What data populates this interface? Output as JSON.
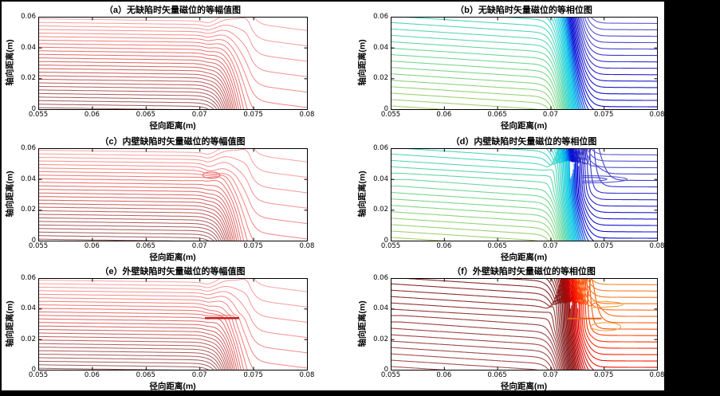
{
  "figure": {
    "background": "#ffffff",
    "matting_color": "#000000",
    "description": "Six MATLAB-style contour panels (2 columns x 3 rows) of vector magnetic potential around a pipe wall: left column iso-amplitude (red), right column iso-phase (jet-colored), for no defect, inner-wall defect and outer-wall defect."
  },
  "axes": {
    "x_label": "径向距离(m)",
    "y_label": "轴向距离(m)",
    "x_ticks": [
      "0.055",
      "0.06",
      "0.065",
      "0.07",
      "0.075",
      "0.08"
    ],
    "x_tick_values": [
      0.055,
      0.06,
      0.065,
      0.07,
      0.075,
      0.08
    ],
    "y_ticks": [
      "0",
      "0.02",
      "0.04",
      "0.06"
    ],
    "y_tick_values": [
      0,
      0.02,
      0.04,
      0.06
    ],
    "xlim": [
      0.055,
      0.08
    ],
    "ylim": [
      0,
      0.06
    ],
    "frame_color": "#000000"
  },
  "chart_data": [
    {
      "panel": "a",
      "type": "contour",
      "title": "（a）无缺陷时矢量磁位的等幅值图",
      "xlabel": "径向距离(m)",
      "ylabel": "轴向距离(m)",
      "xlim": [
        0.055,
        0.08
      ],
      "ylim": [
        0,
        0.06
      ],
      "xticks": [
        0.055,
        0.06,
        0.065,
        0.07,
        0.075,
        0.08
      ],
      "yticks": [
        0,
        0.02,
        0.04,
        0.06
      ],
      "n_levels": 26,
      "grid": false,
      "legend": "none",
      "features": {
        "left_lines": "≈26 near-horizontal red lines, spacing ≈0.0023 m",
        "wall_band_x": [
          0.07,
          0.0745
        ],
        "right_lines": "≈6 lines sloping down-right, spacing ≈0.01 m",
        "defect": null
      },
      "cmap": [
        [
          0,
          "#9A5858"
        ],
        [
          0.28,
          "#B55A5A"
        ],
        [
          0.5,
          "#D56060"
        ],
        [
          0.68,
          "#EE6E6E"
        ],
        [
          0.85,
          "#F68A8A"
        ],
        [
          1,
          "#F8A4A4"
        ]
      ],
      "model": {
        "type": "amp",
        "n": 26,
        "k_off": 0.4,
        "c_in": 433,
        "c_out": 100,
        "cx0": 0.0705,
        "cx1": 0.0747,
        "r_in": 40,
        "R": 6700,
        "xw": 0.0728,
        "ww": 0.0016,
        "r_out": 90,
        "out0": 0.0735,
        "out1": 0.0748,
        "lw": 1
      },
      "extras": {}
    },
    {
      "panel": "b",
      "type": "contour",
      "title": "（b）无缺陷时矢量磁位的等相位图",
      "xlabel": "径向距离(m)",
      "ylabel": "轴向距离(m)",
      "xlim": [
        0.055,
        0.08
      ],
      "ylim": [
        0,
        0.06
      ],
      "xticks": [
        0.055,
        0.06,
        0.065,
        0.07,
        0.075,
        0.08
      ],
      "yticks": [
        0,
        0.02,
        0.04,
        0.06
      ],
      "n_levels": 60,
      "grid": false,
      "legend": "none",
      "features": {
        "left_lines": "green lines slope ≈ -0.45, spacing ≈0.0046 m",
        "wall_band_x": [
          0.0695,
          0.0745
        ],
        "band_colors": "cyan block then deep blue block then blue hatch",
        "right_lines": "≈14 horizontal periwinkle-blue lines",
        "defect": null
      },
      "cmap": [
        [
          0,
          "#A9CF6B"
        ],
        [
          0.1,
          "#7FD687"
        ],
        [
          0.2,
          "#5BD8AE"
        ],
        [
          0.3,
          "#2ED6D6"
        ],
        [
          0.38,
          "#0EC9E9"
        ],
        [
          0.46,
          "#0072E8"
        ],
        [
          0.52,
          "#0008D8"
        ],
        [
          0.6,
          "#1818CE"
        ],
        [
          0.7,
          "#4444CE"
        ],
        [
          0.82,
          "#7070DA"
        ],
        [
          1,
          "#8A8ADF"
        ]
      ],
      "model": {
        "type": "phase",
        "n": 60,
        "k_off": 0.5,
        "c_in": 240,
        "c_out": 240,
        "cx0": 0.069,
        "cx1": 0.0755,
        "r_in": 108,
        "R": 11280,
        "xw": 0.0718,
        "ww": 0.0015,
        "r_out": 8,
        "out0": 0.0738,
        "out1": 0.0752,
        "lw": 1.1
      },
      "extras": {}
    },
    {
      "panel": "c",
      "type": "contour",
      "title": "（c）内壁缺陷时矢量磁位的等幅值图",
      "xlabel": "径向距离(m)",
      "ylabel": "轴向距离(m)",
      "xlim": [
        0.055,
        0.08
      ],
      "ylim": [
        0,
        0.06
      ],
      "xticks": [
        0.055,
        0.06,
        0.065,
        0.07,
        0.075,
        0.08
      ],
      "yticks": [
        0,
        0.02,
        0.04,
        0.06
      ],
      "n_levels": 26,
      "grid": false,
      "legend": "none",
      "features": {
        "same_as": "a",
        "defect": {
          "wall_side": "inner",
          "x": 0.0716,
          "y": 0.0425,
          "effect": "local wiggle / pinch of contours with small closed loop"
        }
      },
      "cmap": [
        [
          0,
          "#9A5858"
        ],
        [
          0.28,
          "#B55A5A"
        ],
        [
          0.5,
          "#D56060"
        ],
        [
          0.68,
          "#EE6E6E"
        ],
        [
          0.85,
          "#F68A8A"
        ],
        [
          1,
          "#F8A4A4"
        ]
      ],
      "model": {
        "type": "amp",
        "n": 26,
        "k_off": 0.4,
        "c_in": 433,
        "c_out": 100,
        "cx0": 0.0705,
        "cx1": 0.0747,
        "r_in": 40,
        "R": 6700,
        "xw": 0.0728,
        "ww": 0.0016,
        "r_out": 90,
        "out0": 0.0735,
        "out1": 0.0748,
        "lw": 1,
        "dip": {
          "a": 0.0045,
          "x": 0.0716,
          "wx": 0.0013,
          "y": 0.0425,
          "w": 0.0055
        }
      },
      "extras": {
        "loops": [
          {
            "cx": 0.0711,
            "cy": 0.0425,
            "rx": 0.0008,
            "ry": 0.002,
            "color": "#EE6A6A"
          }
        ]
      }
    },
    {
      "panel": "d",
      "type": "contour",
      "title": "（d）内壁缺陷时矢量磁位的等相位图",
      "xlabel": "径向距离(m)",
      "ylabel": "轴向距离(m)",
      "xlim": [
        0.055,
        0.08
      ],
      "ylim": [
        0,
        0.06
      ],
      "xticks": [
        0.055,
        0.06,
        0.065,
        0.07,
        0.075,
        0.08
      ],
      "yticks": [
        0,
        0.02,
        0.04,
        0.06
      ],
      "n_levels": 60,
      "grid": false,
      "legend": "none",
      "features": {
        "same_as": "b",
        "defect": {
          "wall_side": "inner",
          "y_range": [
            0.033,
            0.046
          ],
          "effect": "phase band jogs right ≈0.0017 m; blue tongue loops on right near y=0.040"
        }
      },
      "cmap": [
        [
          0,
          "#A9CF6B"
        ],
        [
          0.1,
          "#7FD687"
        ],
        [
          0.2,
          "#5BD8AE"
        ],
        [
          0.3,
          "#2ED6D6"
        ],
        [
          0.38,
          "#0EC9E9"
        ],
        [
          0.46,
          "#0072E8"
        ],
        [
          0.52,
          "#0008D8"
        ],
        [
          0.6,
          "#1818CE"
        ],
        [
          0.7,
          "#4444CE"
        ],
        [
          0.82,
          "#7070DA"
        ],
        [
          1,
          "#8A8ADF"
        ]
      ],
      "model": {
        "type": "phase",
        "n": 60,
        "k_off": 0.5,
        "c_in": 240,
        "c_out": 240,
        "cx0": 0.069,
        "cx1": 0.0755,
        "r_in": 108,
        "R": 11280,
        "xw": 0.0718,
        "ww": 0.0015,
        "r_out": 8,
        "out0": 0.0738,
        "out1": 0.0752,
        "lw": 1.1,
        "jog": {
          "a": 0.0017,
          "y": 0.0395,
          "w": 0.005
        }
      },
      "extras": {
        "tongues": [
          {
            "x0": 0.073,
            "ax": 0.0772,
            "yc": 0.0398,
            "h": 0.0023,
            "color": "#5050D2"
          },
          {
            "x0": 0.073,
            "ax": 0.0753,
            "yc": 0.0398,
            "h": 0.0012,
            "color": "#5050D2"
          }
        ]
      }
    },
    {
      "panel": "e",
      "type": "contour",
      "title": "（e）外壁缺陷时矢量磁位的等幅值图",
      "xlabel": "径向距离(m)",
      "ylabel": "轴向距离(m)",
      "xlim": [
        0.055,
        0.08
      ],
      "ylim": [
        0,
        0.06
      ],
      "xticks": [
        0.055,
        0.06,
        0.065,
        0.07,
        0.075,
        0.08
      ],
      "yticks": [
        0,
        0.02,
        0.04,
        0.06
      ],
      "n_levels": 26,
      "grid": false,
      "legend": "none",
      "features": {
        "same_as": "a",
        "defect": {
          "wall_side": "outer",
          "x": 0.0726,
          "y": 0.0355,
          "effect": "contours pinch at y≈0.034 with dark horizontal mark; wiggles above"
        }
      },
      "cmap": [
        [
          0,
          "#9A5858"
        ],
        [
          0.28,
          "#B55A5A"
        ],
        [
          0.5,
          "#D56060"
        ],
        [
          0.68,
          "#EE6E6E"
        ],
        [
          0.85,
          "#F68A8A"
        ],
        [
          1,
          "#F8A4A4"
        ]
      ],
      "model": {
        "type": "amp",
        "n": 26,
        "k_off": 0.4,
        "c_in": 433,
        "c_out": 100,
        "cx0": 0.0705,
        "cx1": 0.0747,
        "r_in": 40,
        "R": 6700,
        "xw": 0.0728,
        "ww": 0.0016,
        "r_out": 90,
        "out0": 0.0735,
        "out1": 0.0748,
        "lw": 1,
        "dip": {
          "a": 0.0058,
          "x": 0.0726,
          "wx": 0.0015,
          "y": 0.0355,
          "w": 0.0055
        }
      },
      "extras": {
        "marks": [
          {
            "x1": 0.0705,
            "y1": 0.0338,
            "x2": 0.0737,
            "y2": 0.0338,
            "color": "#C22222",
            "w": 2.5
          }
        ]
      }
    },
    {
      "panel": "f",
      "type": "contour",
      "title": "（f）外壁缺陷时矢量磁位的等相位图",
      "xlabel": "径向距离(m)",
      "ylabel": "轴向距离(m)",
      "xlim": [
        0.055,
        0.08
      ],
      "ylim": [
        0,
        0.06
      ],
      "xticks": [
        0.055,
        0.06,
        0.065,
        0.07,
        0.075,
        0.08
      ],
      "yticks": [
        0,
        0.02,
        0.04,
        0.06
      ],
      "n_levels": 60,
      "grid": false,
      "legend": "none",
      "features": {
        "left_lines": "maroon-brown lines slope ≈ -0.45",
        "wall_band_x": [
          0.07,
          0.0745
        ],
        "band_colors": "dark maroon → solid bright red → orange hatch",
        "right_lines": "orange horizontal lines, closed loop near (0.0752, 0.028)",
        "defect": {
          "wall_side": "outer",
          "y": 0.0335,
          "effect": "band jog and dark-orange pinch mark at y≈0.0335"
        }
      },
      "cmap": [
        [
          0,
          "#A85454"
        ],
        [
          0.14,
          "#9A3C3C"
        ],
        [
          0.28,
          "#842020"
        ],
        [
          0.4,
          "#9E0A0A"
        ],
        [
          0.5,
          "#D80000"
        ],
        [
          0.58,
          "#FF1E00"
        ],
        [
          0.68,
          "#FF6A14"
        ],
        [
          0.8,
          "#F28E34"
        ],
        [
          1,
          "#EFA84E"
        ]
      ],
      "model": {
        "type": "phase",
        "n": 60,
        "k_off": 0.5,
        "c_in": 240,
        "c_out": 240,
        "cx0": 0.069,
        "cx1": 0.0755,
        "r_in": 108,
        "R": 11280,
        "xw": 0.0718,
        "ww": 0.0015,
        "r_out": 8,
        "out0": 0.0738,
        "out1": 0.0752,
        "lw": 1.1,
        "jog": {
          "a": 0.0013,
          "y": 0.0335,
          "w": 0.0045
        }
      },
      "extras": {
        "loops": [
          {
            "cx": 0.0752,
            "cy": 0.0282,
            "rx": 0.0014,
            "ry": 0.0026,
            "color": "#EFA040"
          }
        ],
        "tongues": [
          {
            "x0": 0.0738,
            "ax": 0.0768,
            "yc": 0.0428,
            "h": 0.002,
            "color": "#EFA040"
          }
        ],
        "marks": [
          {
            "x1": 0.0716,
            "y1": 0.0335,
            "x2": 0.0748,
            "y2": 0.0335,
            "color": "#E0661A",
            "w": 2
          }
        ]
      }
    }
  ]
}
